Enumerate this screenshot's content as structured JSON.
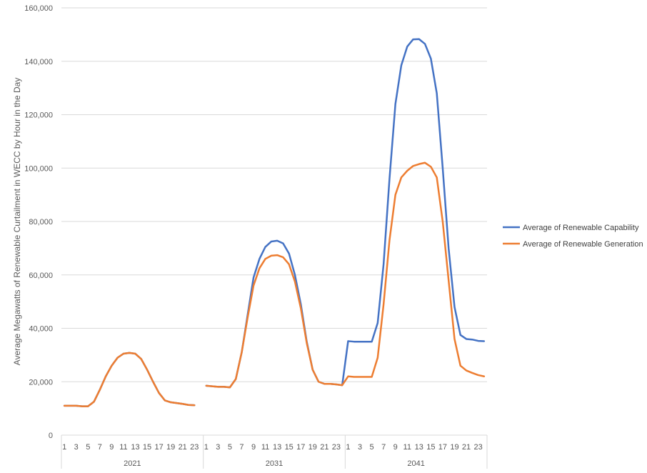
{
  "chart_data": {
    "type": "line",
    "title": "",
    "ylabel": "Average Megawatts of Renewable Curtailment in WECC by Hour in the Day",
    "xlabel": "",
    "ylim": [
      0,
      160000
    ],
    "yticks": [
      "0",
      "20,000",
      "40,000",
      "60,000",
      "80,000",
      "100,000",
      "120,000",
      "140,000",
      "160,000"
    ],
    "grid": true,
    "legend_position": "right",
    "groups": [
      {
        "label": "2021",
        "hours": [
          1,
          2,
          3,
          4,
          5,
          6,
          7,
          8,
          9,
          10,
          11,
          12,
          13,
          14,
          15,
          16,
          17,
          18,
          19,
          20,
          21,
          22,
          23,
          24
        ]
      },
      {
        "label": "2031",
        "hours": [
          1,
          2,
          3,
          4,
          5,
          6,
          7,
          8,
          9,
          10,
          11,
          12,
          13,
          14,
          15,
          16,
          17,
          18,
          19,
          20,
          21,
          22,
          23,
          24
        ]
      },
      {
        "label": "2041",
        "hours": [
          1,
          2,
          3,
          4,
          5,
          6,
          7,
          8,
          9,
          10,
          11,
          12,
          13,
          14,
          15,
          16,
          17,
          18,
          19,
          20,
          21,
          22,
          23,
          24
        ]
      }
    ],
    "hour_tick_labels": [
      "1",
      "3",
      "5",
      "7",
      "9",
      "11",
      "13",
      "15",
      "17",
      "19",
      "21",
      "23"
    ],
    "series": [
      {
        "name": "Average of Renewable Capability",
        "color": "#4472C4",
        "values": [
          11000,
          11000,
          11000,
          10800,
          10800,
          12500,
          17000,
          22000,
          26000,
          29000,
          30500,
          30800,
          30500,
          28500,
          24500,
          20000,
          15800,
          13000,
          12300,
          12000,
          11700,
          11300,
          11200,
          null,
          18500,
          18300,
          18100,
          18100,
          17900,
          21000,
          31000,
          45000,
          59000,
          66000,
          70500,
          72500,
          72800,
          71800,
          68000,
          60000,
          49000,
          35000,
          24500,
          20000,
          19200,
          19200,
          19000,
          18700,
          35200,
          35000,
          35000,
          35000,
          35000,
          42000,
          64000,
          96000,
          124000,
          138500,
          145500,
          148200,
          148300,
          146500,
          141000,
          128000,
          100000,
          70000,
          48000,
          37500,
          36000,
          35800,
          35300,
          35200
        ]
      },
      {
        "name": "Average of Renewable Generation",
        "color": "#ED7D31",
        "values": [
          11000,
          11000,
          11000,
          10800,
          10800,
          12500,
          17000,
          22000,
          26000,
          29000,
          30500,
          30800,
          30500,
          28500,
          24500,
          20000,
          15800,
          13000,
          12300,
          12000,
          11700,
          11300,
          11200,
          null,
          18500,
          18300,
          18100,
          18100,
          17900,
          21000,
          31000,
          44000,
          56000,
          62500,
          66000,
          67200,
          67400,
          66600,
          64000,
          57500,
          47500,
          34500,
          24500,
          20000,
          19200,
          19200,
          19000,
          18700,
          22000,
          21800,
          21800,
          21800,
          21800,
          29000,
          49000,
          73000,
          90000,
          96500,
          99000,
          100800,
          101500,
          102000,
          100500,
          96500,
          80000,
          58000,
          36000,
          26000,
          24200,
          23300,
          22500,
          22000
        ]
      }
    ]
  }
}
